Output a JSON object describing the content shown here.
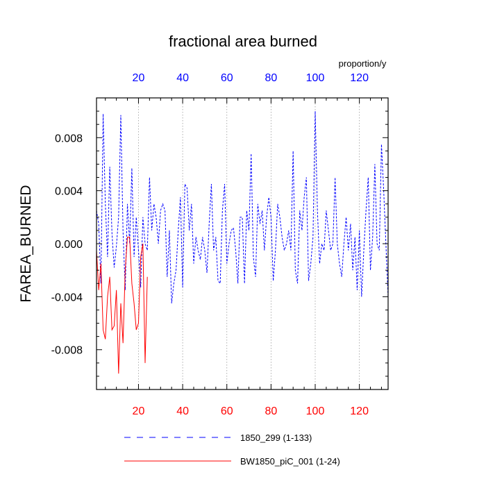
{
  "chart_data": {
    "type": "line",
    "title": "fractional area burned",
    "ylabel": "FAREA_BURNED",
    "units": "proportion/y",
    "xlim": [
      1,
      133
    ],
    "ylim": [
      -0.011,
      0.011
    ],
    "yticks": [
      0.008,
      0.004,
      0.0,
      -0.004,
      -0.008
    ],
    "ytick_labels": [
      "0.008",
      "0.004",
      "0.000",
      "-0.004",
      "-0.008"
    ],
    "xticks": [
      20,
      40,
      60,
      80,
      100,
      120
    ],
    "xtick_labels": [
      "20",
      "40",
      "60",
      "80",
      "100",
      "120"
    ],
    "grid": "vertical dotted",
    "colors": {
      "top_axis": "#0000ff",
      "bottom_axis": "#ff0000"
    },
    "series": [
      {
        "name": "1850_299 (1-133)",
        "color": "#0000ff",
        "style": "dashed",
        "x_start": 1,
        "values": [
          0.0025,
          0.0015,
          -0.003,
          0.0098,
          0.003,
          -0.001,
          0.0058,
          0.0008,
          -0.0018,
          -0.0002,
          0.002,
          0.0097,
          0.001,
          -0.0035,
          0.003,
          0.0,
          0.0057,
          -0.001,
          0.002,
          -0.0005,
          -0.0033,
          0.002,
          0.0,
          -0.0005,
          0.005,
          0.001,
          0.003,
          0.002,
          0.0,
          0.0025,
          0.003,
          0.0025,
          -0.0025,
          0.001,
          -0.0045,
          -0.003,
          -0.002,
          0.001,
          0.0035,
          -0.0033,
          0.0045,
          0.0042,
          0.001,
          0.003,
          -0.0015,
          0.0005,
          -0.0005,
          -0.0012,
          0.0005,
          -0.0005,
          -0.0022,
          0.0015,
          0.0045,
          -0.0005,
          0.0005,
          -0.0028,
          -0.003,
          0.0025,
          0.0045,
          -0.0015,
          0.0,
          0.001,
          0.0012,
          -0.0005,
          -0.003,
          0.002,
          0.002,
          -0.003,
          0.0025,
          0.001,
          0.0068,
          -0.001,
          -0.0025,
          0.003,
          0.0015,
          0.0025,
          -0.0005,
          0.002,
          0.0035,
          0.002,
          -0.0028,
          -0.0005,
          0.003,
          0.002,
          0.0005,
          -0.0005,
          0.0,
          0.001,
          -0.0005,
          0.007,
          -0.002,
          -0.003,
          0.0025,
          0.001,
          0.0035,
          0.005,
          -0.0028,
          -0.0015,
          0.0005,
          0.01,
          0.0025,
          -0.0015,
          0.0,
          -0.0005,
          0.0025,
          0.001,
          -0.0005,
          0.0,
          0.005,
          0.0,
          -0.0015,
          -0.0025,
          0.0,
          0.002,
          -0.0005,
          0.0015,
          -0.002,
          0.0005,
          -0.0035,
          0.001,
          -0.004,
          -0.0005,
          0.0025,
          0.005,
          -0.002,
          0.0005,
          0.006,
          0.0,
          -0.0005,
          0.0075,
          0.004,
          0.0,
          -0.004
        ]
      },
      {
        "name": "BW1850_piC_001 (1-24)",
        "color": "#ff0000",
        "style": "solid",
        "x_start": 1,
        "values": [
          -0.0005,
          -0.0035,
          -0.0015,
          -0.0065,
          -0.0072,
          -0.004,
          -0.0025,
          -0.0065,
          -0.0062,
          -0.0035,
          -0.0098,
          -0.0045,
          -0.0075,
          -0.002,
          0.0005,
          0.0005,
          -0.003,
          -0.0045,
          -0.0065,
          -0.006,
          -0.001,
          0.0,
          -0.009,
          -0.0025
        ]
      }
    ]
  }
}
